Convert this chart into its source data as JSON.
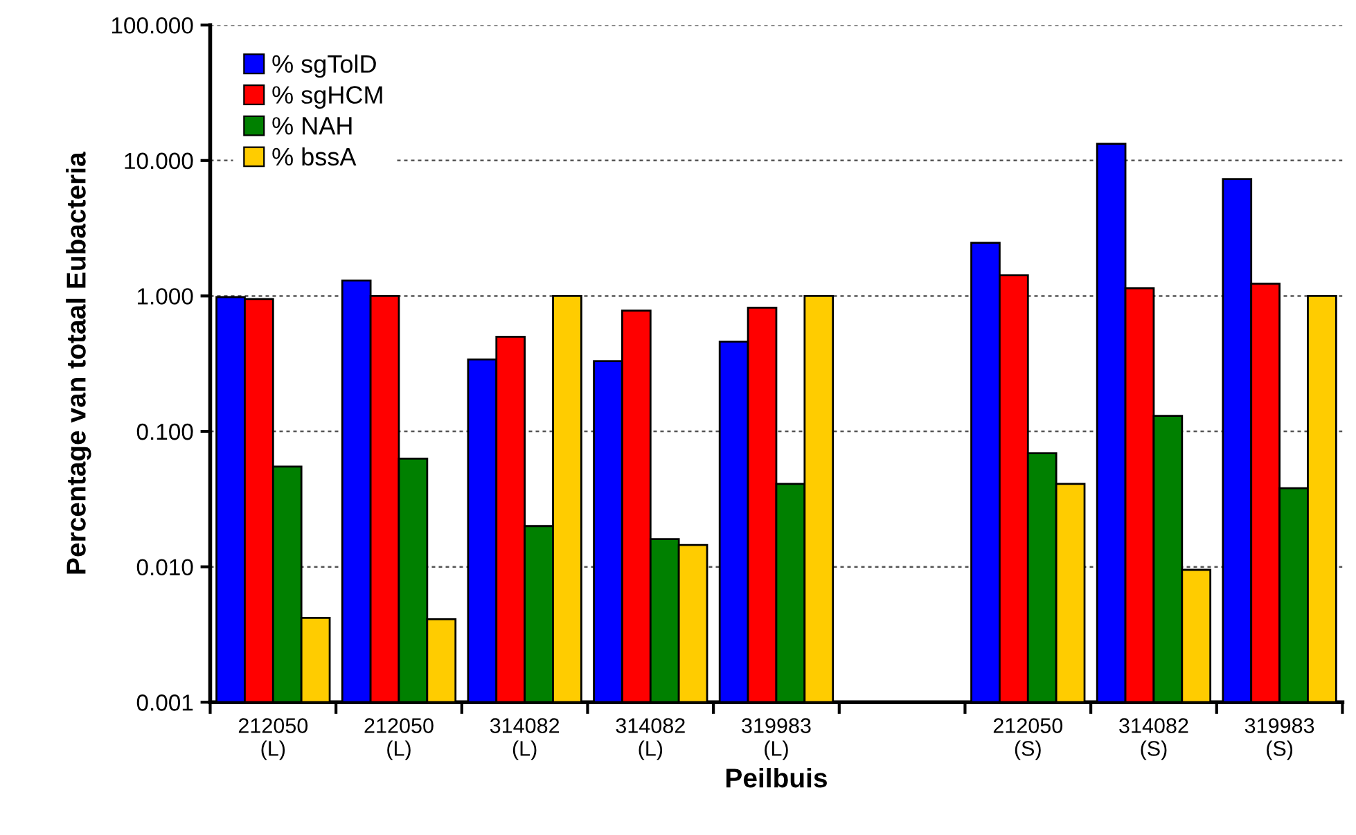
{
  "chart_data": {
    "type": "bar",
    "xlabel": "Peilbuis",
    "ylabel": "Percentage van totaal Eubacteria",
    "categories": [
      "212050\n(L)",
      "212050\n(L)",
      "314082\n(L)",
      "314082\n(L)",
      "319983\n(L)",
      null,
      "212050\n(S)",
      "314082\n(S)",
      "319983\n(S)"
    ],
    "series": [
      {
        "name": "% sgTolD",
        "color": "#0000ff",
        "values": [
          0.98,
          1.3,
          0.34,
          0.33,
          0.46,
          null,
          2.47,
          13.3,
          7.3
        ]
      },
      {
        "name": "% sgHCM",
        "color": "#ff0000",
        "values": [
          0.95,
          1.0,
          0.5,
          0.78,
          0.82,
          null,
          1.42,
          1.14,
          1.23
        ]
      },
      {
        "name": "% NAH",
        "color": "#008000",
        "values": [
          0.055,
          0.063,
          0.02,
          0.016,
          0.041,
          null,
          0.069,
          0.13,
          0.038
        ]
      },
      {
        "name": "% bssA",
        "color": "#ffcc00",
        "values": [
          0.0042,
          0.0041,
          1.0,
          0.0145,
          1.0,
          null,
          0.041,
          0.0095,
          1.0
        ]
      }
    ],
    "log": true,
    "ylim": [
      0.001,
      100
    ],
    "yticks": [
      {
        "value": 0.001,
        "label": "0.001"
      },
      {
        "value": 0.01,
        "label": "0.010"
      },
      {
        "value": 0.1,
        "label": "0.100"
      },
      {
        "value": 1,
        "label": "1.000"
      },
      {
        "value": 10,
        "label": "10.000"
      },
      {
        "value": 100,
        "label": "100.000"
      }
    ],
    "grid": "y",
    "legend": "top left"
  }
}
